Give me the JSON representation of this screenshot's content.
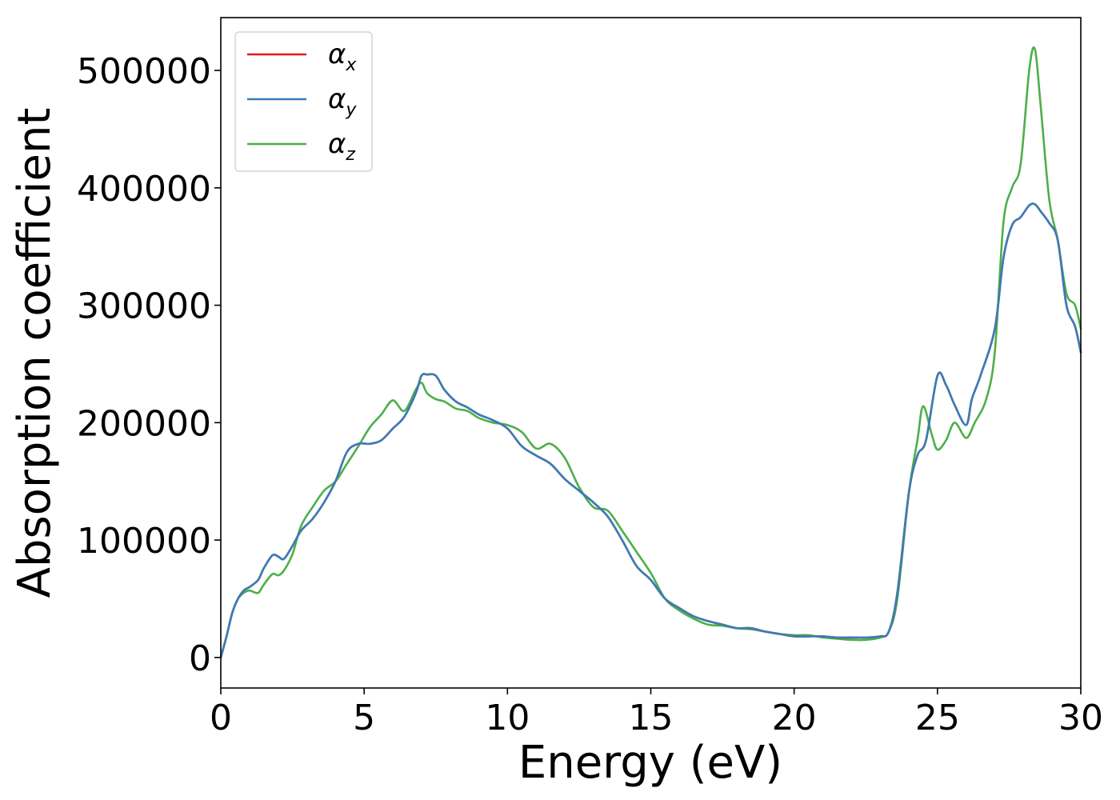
{
  "chart_data": {
    "type": "line",
    "xlabel": "Energy (eV)",
    "ylabel": "Absorption coefficient",
    "xlim": [
      0,
      30
    ],
    "ylim": [
      -26000,
      545000
    ],
    "xticks": [
      0,
      5,
      10,
      15,
      20,
      25,
      30
    ],
    "yticks": [
      0,
      100000,
      200000,
      300000,
      400000,
      500000
    ],
    "grid": false,
    "legend_position": "top-left",
    "series": [
      {
        "name": "α",
        "sub": "x",
        "color": "#e41a1c",
        "x": [
          0,
          0.2,
          0.4,
          0.6,
          0.8,
          1.0,
          1.3,
          1.5,
          1.8,
          2.0,
          2.2,
          2.5,
          2.8,
          3.2,
          3.6,
          4.0,
          4.4,
          4.8,
          5.2,
          5.6,
          6.0,
          6.4,
          6.8,
          7.0,
          7.2,
          7.5,
          7.8,
          8.2,
          8.6,
          9.0,
          9.5,
          10.0,
          10.5,
          11.0,
          11.5,
          12.0,
          12.5,
          13.0,
          13.5,
          14.0,
          14.5,
          15.0,
          15.5,
          16.0,
          16.5,
          17.0,
          17.5,
          18.0,
          18.5,
          19.0,
          19.5,
          20.0,
          20.5,
          21.0,
          21.5,
          22.0,
          22.5,
          23.0,
          23.3,
          23.6,
          24.0,
          24.3,
          24.6,
          25.0,
          25.3,
          25.6,
          26.0,
          26.2,
          26.5,
          27.0,
          27.3,
          27.6,
          27.9,
          28.2,
          28.4,
          28.6,
          28.9,
          29.2,
          29.5,
          29.8,
          30.0
        ],
        "values": [
          0,
          18000,
          38000,
          50000,
          57000,
          60000,
          66000,
          76000,
          87000,
          86000,
          84000,
          95000,
          108000,
          118000,
          132000,
          150000,
          175000,
          182000,
          182000,
          185000,
          195000,
          205000,
          225000,
          240000,
          241000,
          240000,
          228000,
          218000,
          213000,
          207000,
          202000,
          195000,
          180000,
          172000,
          165000,
          152000,
          142000,
          132000,
          120000,
          100000,
          78000,
          66000,
          50000,
          42000,
          35000,
          31000,
          28000,
          25000,
          25000,
          22000,
          20000,
          18000,
          18000,
          18000,
          17000,
          17000,
          17000,
          18000,
          22000,
          55000,
          140000,
          172000,
          185000,
          240000,
          232000,
          215000,
          198000,
          220000,
          240000,
          280000,
          340000,
          368000,
          375000,
          385000,
          386000,
          380000,
          370000,
          355000,
          300000,
          282000,
          260000
        ]
      },
      {
        "name": "α",
        "sub": "y",
        "color": "#377eb8",
        "x": [
          0,
          0.2,
          0.4,
          0.6,
          0.8,
          1.0,
          1.3,
          1.5,
          1.8,
          2.0,
          2.2,
          2.5,
          2.8,
          3.2,
          3.6,
          4.0,
          4.4,
          4.8,
          5.2,
          5.6,
          6.0,
          6.4,
          6.8,
          7.0,
          7.2,
          7.5,
          7.8,
          8.2,
          8.6,
          9.0,
          9.5,
          10.0,
          10.5,
          11.0,
          11.5,
          12.0,
          12.5,
          13.0,
          13.5,
          14.0,
          14.5,
          15.0,
          15.5,
          16.0,
          16.5,
          17.0,
          17.5,
          18.0,
          18.5,
          19.0,
          19.5,
          20.0,
          20.5,
          21.0,
          21.5,
          22.0,
          22.5,
          23.0,
          23.3,
          23.6,
          24.0,
          24.3,
          24.6,
          25.0,
          25.3,
          25.6,
          26.0,
          26.2,
          26.5,
          27.0,
          27.3,
          27.6,
          27.9,
          28.2,
          28.4,
          28.6,
          28.9,
          29.2,
          29.5,
          29.8,
          30.0
        ],
        "values": [
          0,
          18000,
          38000,
          50000,
          57000,
          60000,
          66000,
          76000,
          87000,
          86000,
          84000,
          95000,
          108000,
          118000,
          132000,
          150000,
          175000,
          182000,
          182000,
          185000,
          195000,
          205000,
          225000,
          240000,
          241000,
          240000,
          228000,
          218000,
          213000,
          207000,
          202000,
          195000,
          180000,
          172000,
          165000,
          152000,
          142000,
          132000,
          120000,
          100000,
          78000,
          66000,
          50000,
          42000,
          35000,
          31000,
          28000,
          25000,
          25000,
          22000,
          20000,
          18000,
          18000,
          18000,
          17000,
          17000,
          17000,
          18000,
          22000,
          55000,
          140000,
          172000,
          185000,
          240000,
          232000,
          215000,
          198000,
          220000,
          240000,
          280000,
          340000,
          368000,
          375000,
          385000,
          386000,
          380000,
          370000,
          355000,
          300000,
          282000,
          260000
        ]
      },
      {
        "name": "α",
        "sub": "z",
        "color": "#4daf4a",
        "x": [
          0,
          0.2,
          0.4,
          0.6,
          0.8,
          1.0,
          1.3,
          1.5,
          1.8,
          2.0,
          2.2,
          2.5,
          2.8,
          3.2,
          3.6,
          4.0,
          4.4,
          4.8,
          5.2,
          5.6,
          6.0,
          6.4,
          6.8,
          7.0,
          7.2,
          7.5,
          7.8,
          8.2,
          8.6,
          9.0,
          9.5,
          10.0,
          10.5,
          11.0,
          11.5,
          12.0,
          12.5,
          13.0,
          13.5,
          14.0,
          14.5,
          15.0,
          15.5,
          16.0,
          16.5,
          17.0,
          17.5,
          18.0,
          18.5,
          19.0,
          19.5,
          20.0,
          20.5,
          21.0,
          21.5,
          22.0,
          22.5,
          23.0,
          23.3,
          23.6,
          24.0,
          24.3,
          24.5,
          24.8,
          25.0,
          25.3,
          25.6,
          26.0,
          26.3,
          26.7,
          27.0,
          27.3,
          27.6,
          27.9,
          28.2,
          28.4,
          28.6,
          28.9,
          29.2,
          29.5,
          29.8,
          30.0
        ],
        "values": [
          0,
          18000,
          38000,
          50000,
          55000,
          57000,
          55000,
          62000,
          71000,
          70000,
          74000,
          88000,
          112000,
          128000,
          142000,
          150000,
          165000,
          180000,
          196000,
          207000,
          219000,
          210000,
          228000,
          234000,
          225000,
          220000,
          218000,
          212000,
          210000,
          204000,
          200000,
          198000,
          192000,
          178000,
          182000,
          170000,
          145000,
          128000,
          125000,
          108000,
          90000,
          72000,
          50000,
          40000,
          33000,
          28000,
          27000,
          25000,
          24000,
          22000,
          20000,
          19000,
          19000,
          17000,
          16000,
          15000,
          15000,
          17000,
          22000,
          50000,
          140000,
          185000,
          214000,
          190000,
          177000,
          185000,
          200000,
          187000,
          200000,
          220000,
          260000,
          370000,
          400000,
          420000,
          500000,
          518000,
          470000,
          390000,
          355000,
          310000,
          300000,
          280000
        ]
      }
    ]
  }
}
